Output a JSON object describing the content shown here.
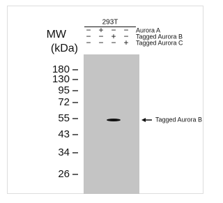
{
  "cell_line": "293T",
  "mw_label": "MW",
  "unit_label": "(kDa)",
  "rows": [
    {
      "label": "Aurora A",
      "signs": [
        "−",
        "+",
        "−",
        "−"
      ]
    },
    {
      "label": "Tagged Aurora B",
      "signs": [
        "−",
        "−",
        "+",
        "−"
      ]
    },
    {
      "label": "Tagged Aurora C",
      "signs": [
        "−",
        "−",
        "−",
        "+"
      ]
    }
  ],
  "markers": [
    "180",
    "130",
    "95",
    "72",
    "55",
    "43",
    "34",
    "26"
  ],
  "band_label": "Tagged Aurora B"
}
